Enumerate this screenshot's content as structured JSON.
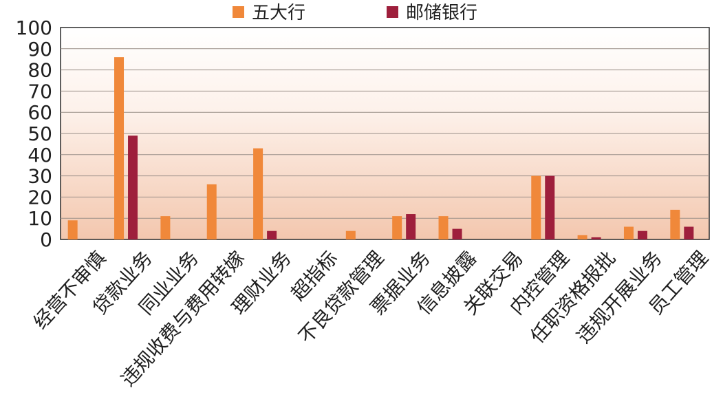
{
  "chart_data": {
    "type": "bar",
    "categories": [
      "经营不审慎",
      "贷款业务",
      "同业业务",
      "违规收费与费用转嫁",
      "理财业务",
      "超指标",
      "不良贷款管理",
      "票据业务",
      "信息披露",
      "关联交易",
      "内控管理",
      "任职资格报批",
      "违规开展业务",
      "员工管理"
    ],
    "series": [
      {
        "name": "五大行",
        "color": "#F0883A",
        "values": [
          9,
          86,
          11,
          26,
          43,
          0,
          4,
          11,
          11,
          0,
          30,
          2,
          6,
          14
        ]
      },
      {
        "name": "邮储银行",
        "color": "#9E1F3C",
        "values": [
          0,
          49,
          0,
          0,
          4,
          0,
          0,
          12,
          5,
          0,
          30,
          1,
          4,
          6
        ]
      }
    ],
    "yticks": [
      "100",
      "90",
      "80",
      "70",
      "60",
      "50",
      "40",
      "30",
      "20",
      "10",
      "0"
    ],
    "ylim": [
      0,
      100
    ],
    "grid": true,
    "legend": "top"
  }
}
